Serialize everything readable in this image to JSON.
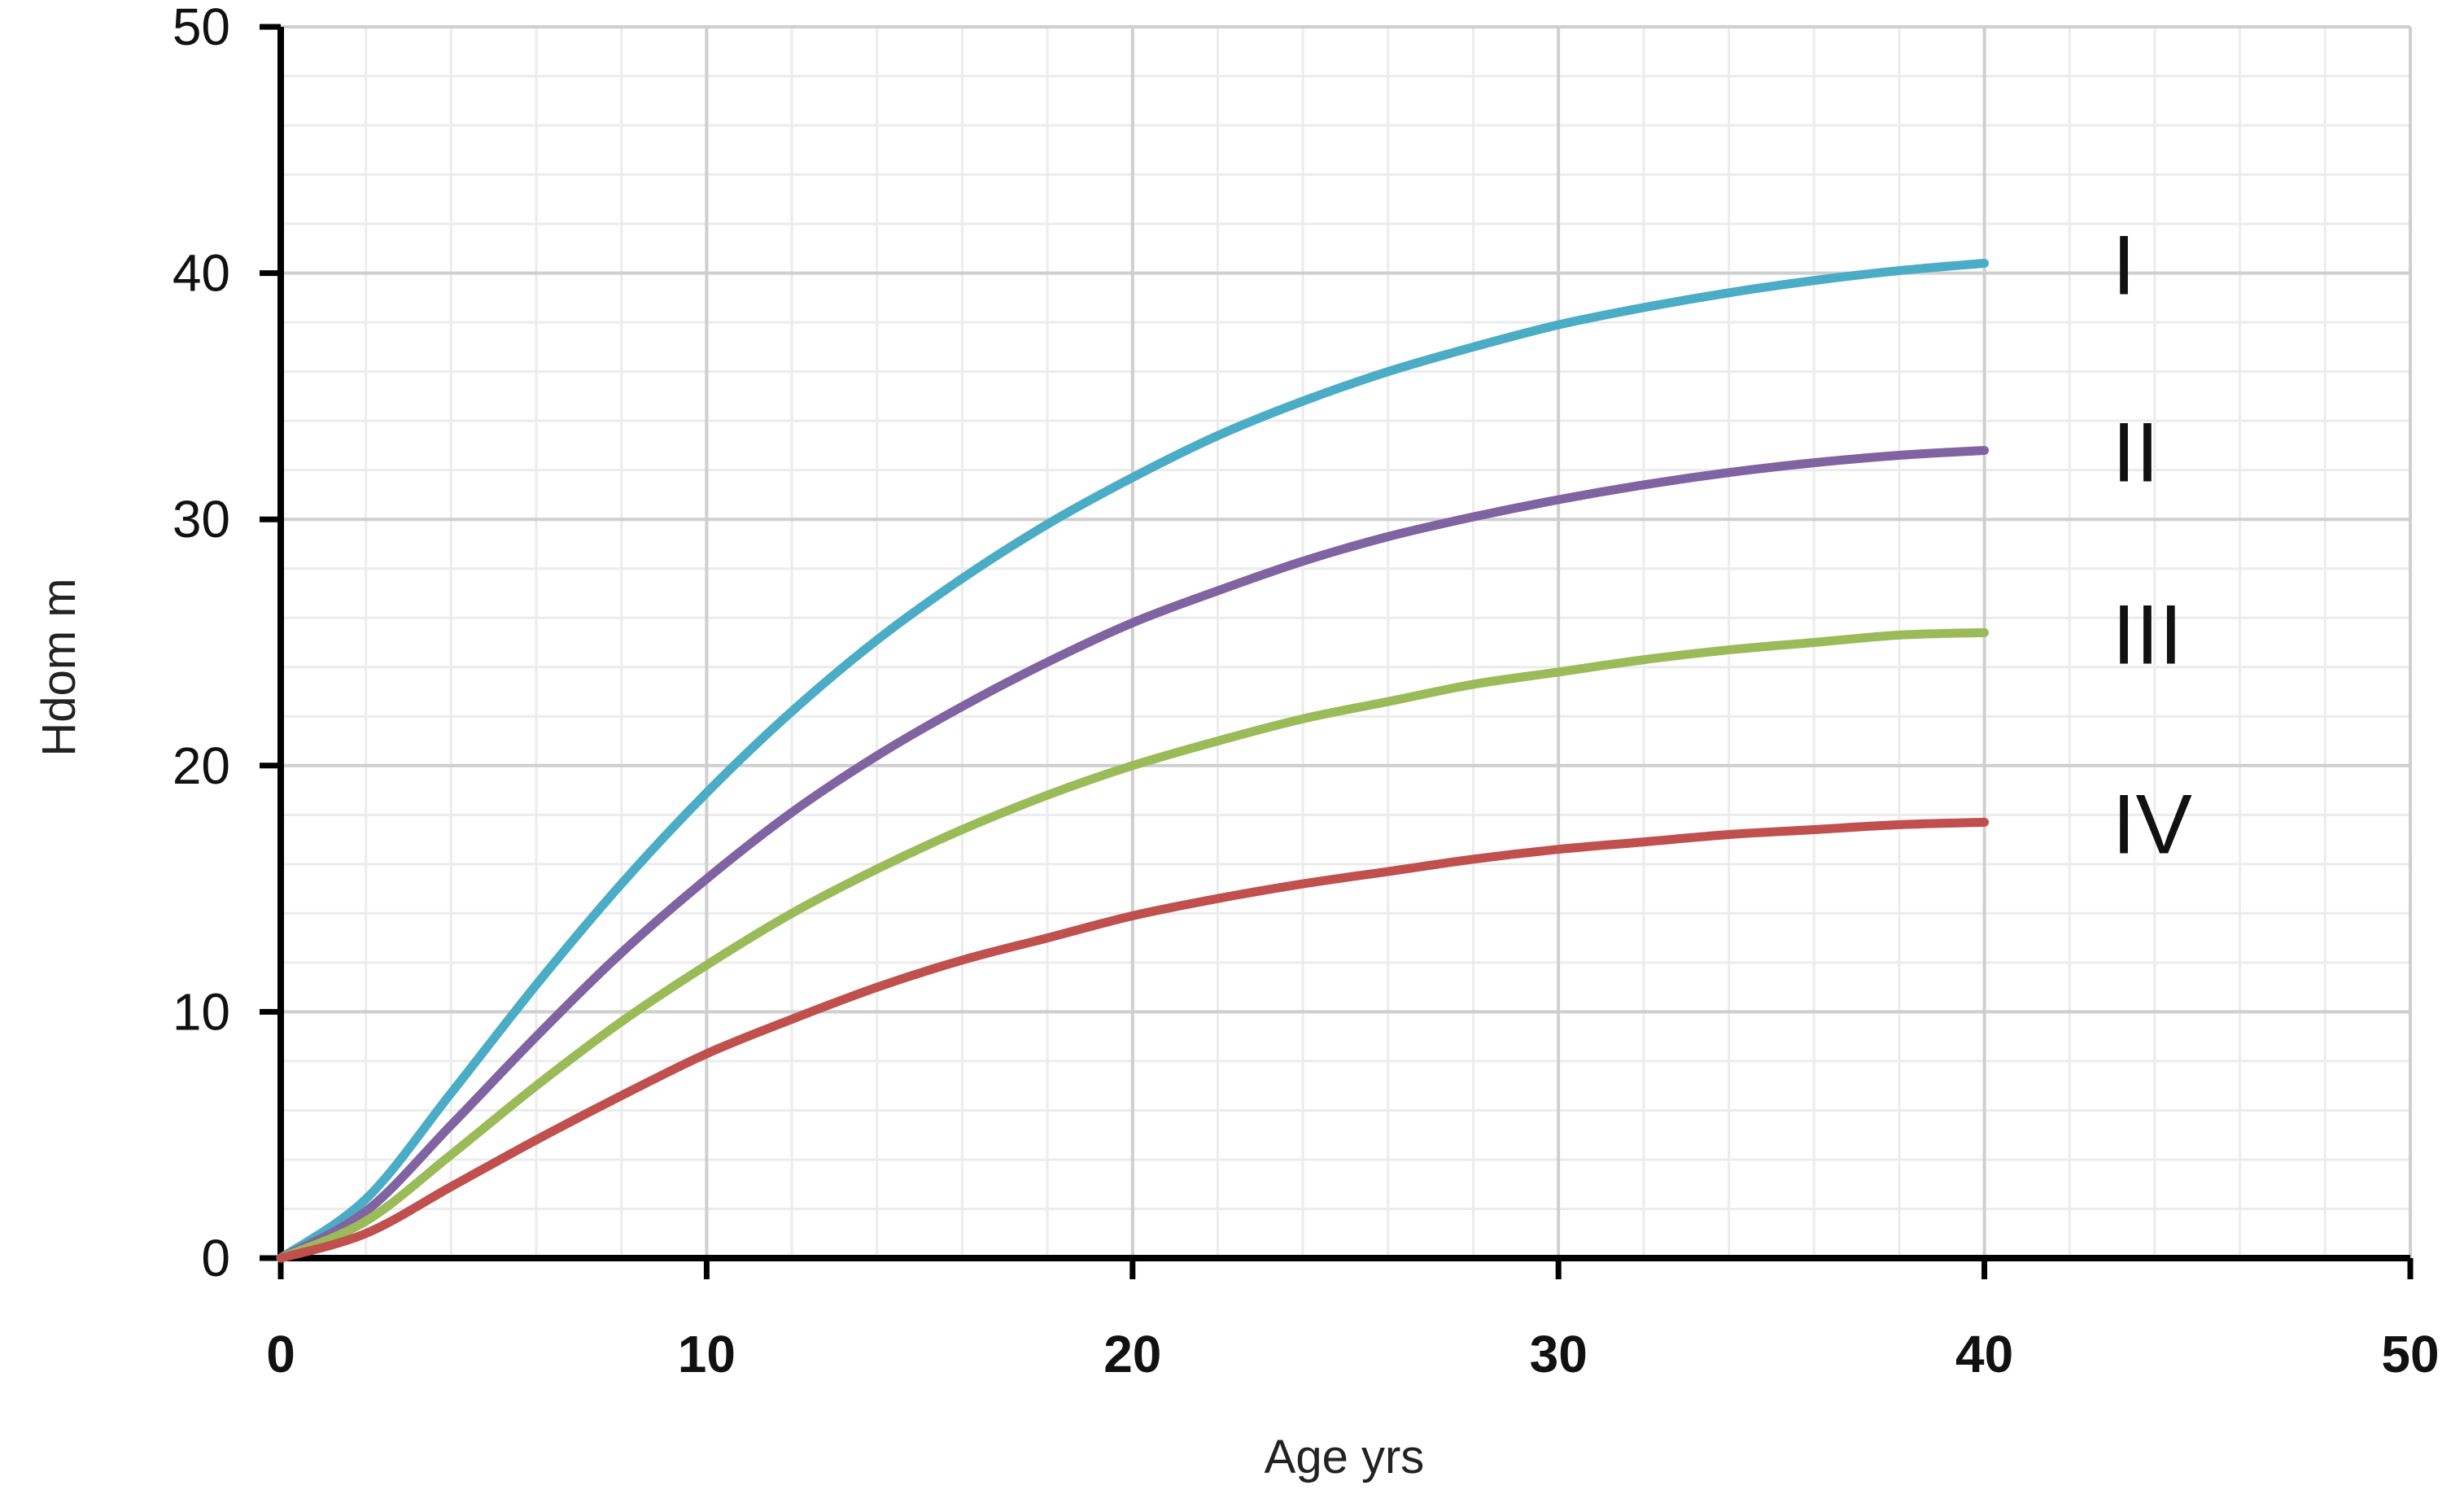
{
  "chart_data": {
    "type": "line",
    "title": "",
    "xlabel": "Age yrs",
    "ylabel": "Hdom m",
    "xlim": [
      0,
      50
    ],
    "ylim": [
      0,
      50
    ],
    "xticks": [
      0,
      10,
      20,
      30,
      40,
      50
    ],
    "yticks": [
      0,
      10,
      20,
      30,
      40,
      50
    ],
    "x_minor_step": 2,
    "y_minor_step": 2,
    "grid": true,
    "legend": "none",
    "x": [
      0,
      2,
      4,
      6,
      8,
      10,
      12,
      14,
      16,
      18,
      20,
      22,
      24,
      26,
      28,
      30,
      32,
      34,
      36,
      38,
      40
    ],
    "series": [
      {
        "name": "I",
        "color": "#4bacc6",
        "values": [
          0,
          2.4,
          6.7,
          11.1,
          15.2,
          18.9,
          22.2,
          25.1,
          27.6,
          29.8,
          31.7,
          33.4,
          34.8,
          36.0,
          37.0,
          37.9,
          38.6,
          39.2,
          39.7,
          40.1,
          40.4
        ]
      },
      {
        "name": "II",
        "color": "#8064a2",
        "values": [
          0,
          1.9,
          5.4,
          9.0,
          12.4,
          15.4,
          18.1,
          20.4,
          22.4,
          24.2,
          25.8,
          27.1,
          28.3,
          29.3,
          30.1,
          30.8,
          31.4,
          31.9,
          32.3,
          32.6,
          32.8
        ]
      },
      {
        "name": "III",
        "color": "#9bbb59",
        "values": [
          0,
          1.5,
          4.2,
          7.0,
          9.6,
          11.9,
          14.0,
          15.8,
          17.4,
          18.8,
          20.0,
          21.0,
          21.9,
          22.6,
          23.3,
          23.8,
          24.3,
          24.7,
          25.0,
          25.3,
          25.4
        ]
      },
      {
        "name": "IV",
        "color": "#c0504d",
        "values": [
          0,
          1.0,
          2.9,
          4.8,
          6.6,
          8.3,
          9.7,
          11.0,
          12.1,
          13.0,
          13.9,
          14.6,
          15.2,
          15.7,
          16.2,
          16.6,
          16.9,
          17.2,
          17.4,
          17.6,
          17.7
        ]
      }
    ]
  }
}
